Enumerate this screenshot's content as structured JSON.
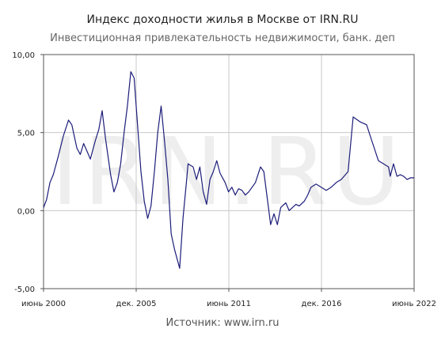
{
  "chart_data": {
    "type": "line",
    "title": "Индекс доходности жилья в Москве от IRN.RU",
    "subtitle": "Инвестиционная привлекательность недвижимости, банк. деп",
    "source": "Источник: www.irn.ru",
    "watermark": "IRN.RU",
    "grid": true,
    "ylim": [
      -5,
      10
    ],
    "xlim": [
      2000.42,
      2022.42
    ],
    "y_ticks": [
      {
        "value": 10,
        "label": "10,00"
      },
      {
        "value": 5,
        "label": "5,00"
      },
      {
        "value": 0,
        "label": "0,00"
      },
      {
        "value": -5,
        "label": "-5,00"
      }
    ],
    "x_ticks": [
      {
        "value": 2000.42,
        "label": "июнь 2000"
      },
      {
        "value": 2005.92,
        "label": "дек. 2005"
      },
      {
        "value": 2011.42,
        "label": "июнь 2011"
      },
      {
        "value": 2016.92,
        "label": "дек. 2016"
      },
      {
        "value": 2022.42,
        "label": "июнь 2022"
      }
    ],
    "line_color": "#1c1c7a",
    "series": [
      {
        "x": [
          2000.42,
          2000.6,
          2000.8,
          2001.0,
          2001.3,
          2001.6,
          2001.9,
          2002.1,
          2002.4,
          2002.6,
          2002.8,
          2003.0,
          2003.2,
          2003.5,
          2003.7,
          2003.9,
          2004.1,
          2004.4,
          2004.6,
          2004.8,
          2005.0,
          2005.2,
          2005.4,
          2005.6,
          2005.8,
          2006.0,
          2006.2,
          2006.4,
          2006.6,
          2006.8,
          2007.0,
          2007.2,
          2007.4,
          2007.6,
          2007.8,
          2008.0,
          2008.2,
          2008.5,
          2008.7,
          2008.9,
          2009.0,
          2009.3,
          2009.5,
          2009.7,
          2009.9,
          2010.1,
          2010.3,
          2010.5,
          2010.7,
          2010.9,
          2011.2,
          2011.4,
          2011.6,
          2011.8,
          2012.0,
          2012.2,
          2012.4,
          2012.6,
          2012.8,
          2013.0,
          2013.3,
          2013.5,
          2013.7,
          2013.9,
          2014.1,
          2014.3,
          2014.5,
          2014.8,
          2015.0,
          2015.2,
          2015.4,
          2015.6,
          2015.9,
          2016.1,
          2016.3,
          2016.6,
          2016.9,
          2017.2,
          2017.5,
          2017.8,
          2018.1,
          2018.5,
          2018.8,
          2019.2,
          2019.6,
          2019.9,
          2020.3,
          2020.6,
          2020.9,
          2021.0,
          2021.2,
          2021.4,
          2021.6,
          2021.8,
          2022.0,
          2022.2,
          2022.42
        ],
        "values": [
          0.2,
          0.7,
          1.8,
          2.3,
          3.5,
          4.8,
          5.8,
          5.5,
          4.0,
          3.6,
          4.3,
          3.8,
          3.3,
          4.5,
          5.2,
          6.4,
          4.6,
          2.3,
          1.2,
          1.8,
          3.0,
          5.0,
          6.7,
          8.9,
          8.5,
          5.5,
          2.5,
          0.6,
          -0.5,
          0.3,
          2.5,
          5.0,
          6.7,
          4.5,
          2.0,
          -1.5,
          -2.5,
          -3.7,
          -0.5,
          1.8,
          3.0,
          2.8,
          2.0,
          2.8,
          1.2,
          0.4,
          2.0,
          2.5,
          3.2,
          2.4,
          1.8,
          1.2,
          1.5,
          1.0,
          1.4,
          1.3,
          1.0,
          1.2,
          1.5,
          1.8,
          2.8,
          2.5,
          0.8,
          -0.9,
          -0.2,
          -0.9,
          0.2,
          0.5,
          0.0,
          0.2,
          0.4,
          0.3,
          0.6,
          1.0,
          1.5,
          1.7,
          1.5,
          1.3,
          1.5,
          1.8,
          2.0,
          2.5,
          6.0,
          5.7,
          5.5,
          4.5,
          3.2,
          3.0,
          2.8,
          2.2,
          3.0,
          2.2,
          2.3,
          2.2,
          2.0,
          2.1,
          2.1
        ]
      }
    ]
  }
}
